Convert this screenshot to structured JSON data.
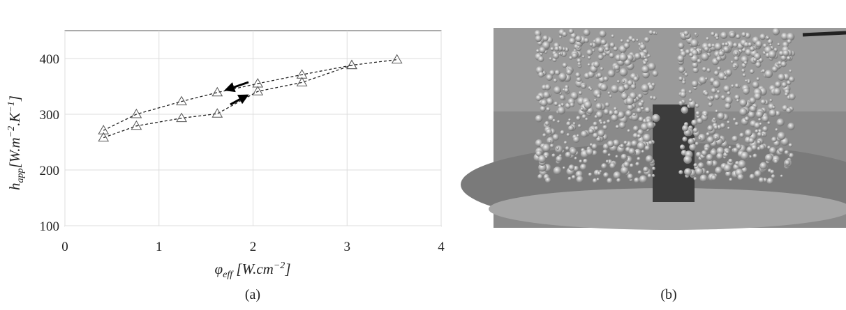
{
  "chart_data": {
    "type": "line",
    "xlabel": [
      "φ",
      "eff",
      " [W.cm",
      "−2",
      "]"
    ],
    "ylabel": [
      "h",
      "app",
      "[W.m",
      "−2",
      ".K",
      "−1",
      "]"
    ],
    "xlim": [
      0,
      4
    ],
    "xticks": [
      0,
      1,
      2,
      3,
      4
    ],
    "ylim": [
      100,
      450
    ],
    "yticks": [
      100,
      200,
      300,
      400
    ],
    "grid": true,
    "marker": "triangle",
    "series": [
      {
        "color": "#222222",
        "x": [
          0.41,
          0.76,
          1.24,
          1.62,
          2.05,
          2.52,
          3.05,
          3.53
        ],
        "values": [
          258,
          279,
          293,
          301,
          341,
          357,
          388,
          398
        ]
      },
      {
        "color": "#222222",
        "x": [
          0.41,
          0.76,
          1.24,
          1.62,
          2.05,
          2.52,
          3.05
        ],
        "values": [
          271,
          300,
          323,
          339,
          355,
          371,
          388
        ]
      }
    ]
  },
  "captions": {
    "a": "(a)",
    "b": "(b)"
  }
}
